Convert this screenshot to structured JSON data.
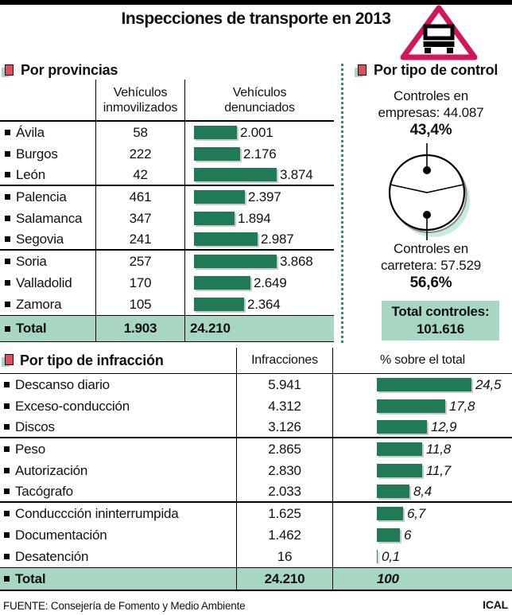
{
  "title": "Inspecciones de transporte en 2013",
  "colors": {
    "bar_green": "#1f7a55",
    "light_green": "#a7d7c3",
    "accent_pink": "#d3155c",
    "bullet_red": "#dd4f5e",
    "pie_shadow_teal": "#c9e9e3",
    "dotted_divider_green": "#2f8f68"
  },
  "provinces": {
    "section_title": "Por provincias",
    "col1_header": "Vehículos inmovilizados",
    "col2_header": "Vehículos denunciados",
    "rows": [
      {
        "name": "Ávila",
        "inmovilizados": "58",
        "denunciados": "2.001",
        "den_value": 2001
      },
      {
        "name": "Burgos",
        "inmovilizados": "222",
        "denunciados": "2.176",
        "den_value": 2176
      },
      {
        "name": "León",
        "inmovilizados": "42",
        "denunciados": "3.874",
        "den_value": 3874
      },
      {
        "name": "Palencia",
        "inmovilizados": "461",
        "denunciados": "2.397",
        "den_value": 2397
      },
      {
        "name": "Salamanca",
        "inmovilizados": "347",
        "denunciados": "1.894",
        "den_value": 1894
      },
      {
        "name": "Segovia",
        "inmovilizados": "241",
        "denunciados": "2.987",
        "den_value": 2987
      },
      {
        "name": "Soria",
        "inmovilizados": "257",
        "denunciados": "3.868",
        "den_value": 3868
      },
      {
        "name": "Valladolid",
        "inmovilizados": "170",
        "denunciados": "2.649",
        "den_value": 2649
      },
      {
        "name": "Zamora",
        "inmovilizados": "105",
        "denunciados": "2.364",
        "den_value": 2364
      }
    ],
    "total": {
      "label": "Total",
      "inmovilizados": "1.903",
      "denunciados": "24.210"
    }
  },
  "control": {
    "section_title": "Por tipo de control",
    "empresas_label": "Controles en empresas: 44.087",
    "empresas_pct": "43,4%",
    "carretera_label": "Controles en carretera: 57.529",
    "carretera_pct": "56,6%",
    "total_label": "Total controles:",
    "total_value": "101.616"
  },
  "infracciones": {
    "section_title": "Por tipo de infracción",
    "col1_header": "Infracciones",
    "col2_header": "% sobre el total",
    "rows": [
      {
        "name": "Descanso diario",
        "count": "5.941",
        "pct": "24,5",
        "pct_value": 24.5
      },
      {
        "name": "Exceso-conducción",
        "count": "4.312",
        "pct": "17,8",
        "pct_value": 17.8
      },
      {
        "name": "Discos",
        "count": "3.126",
        "pct": "12,9",
        "pct_value": 12.9
      },
      {
        "name": "Peso",
        "count": "2.865",
        "pct": "11,8",
        "pct_value": 11.8
      },
      {
        "name": "Autorización",
        "count": "2.830",
        "pct": "11,7",
        "pct_value": 11.7
      },
      {
        "name": "Tacógrafo",
        "count": "2.033",
        "pct": "8,4",
        "pct_value": 8.4
      },
      {
        "name": "Conduccción ininterrumpida",
        "count": "1.625",
        "pct": "6,7",
        "pct_value": 6.7
      },
      {
        "name": "Documentación",
        "count": "1.462",
        "pct": "6",
        "pct_value": 6
      },
      {
        "name": "Desatención",
        "count": "16",
        "pct": "0,1",
        "pct_value": 0.1
      }
    ],
    "total": {
      "label": "Total",
      "count": "24.210",
      "pct": "100"
    }
  },
  "footer": {
    "source": "FUENTE: Consejería de Fomento y Medio Ambiente",
    "credit": "ICAL"
  },
  "chart_data": [
    {
      "type": "bar",
      "title": "Por provincias",
      "categories": [
        "Ávila",
        "Burgos",
        "León",
        "Palencia",
        "Salamanca",
        "Segovia",
        "Soria",
        "Valladolid",
        "Zamora"
      ],
      "series": [
        {
          "name": "Vehículos inmovilizados",
          "values": [
            58,
            222,
            42,
            461,
            347,
            241,
            257,
            170,
            105
          ]
        },
        {
          "name": "Vehículos denunciados",
          "values": [
            2001,
            2176,
            3874,
            2397,
            1894,
            2987,
            3868,
            2649,
            2364
          ]
        }
      ],
      "totals": {
        "inmovilizados": 1903,
        "denunciados": 24210
      },
      "orientation": "horizontal",
      "grid": false,
      "legend_position": "column-headers"
    },
    {
      "type": "pie",
      "title": "Por tipo de control",
      "labels": [
        "Controles en empresas",
        "Controles en carretera"
      ],
      "values": [
        44087,
        57529
      ],
      "percents": [
        43.4,
        56.6
      ],
      "total": 101616
    },
    {
      "type": "bar",
      "title": "Por tipo de infracción",
      "categories": [
        "Descanso diario",
        "Exceso-conducción",
        "Discos",
        "Peso",
        "Autorización",
        "Tacógrafo",
        "Conduccción ininterrumpida",
        "Documentación",
        "Desatención"
      ],
      "series": [
        {
          "name": "Infracciones",
          "values": [
            5941,
            4312,
            3126,
            2865,
            2830,
            2033,
            1625,
            1462,
            16
          ]
        },
        {
          "name": "% sobre el total",
          "values": [
            24.5,
            17.8,
            12.9,
            11.8,
            11.7,
            8.4,
            6.7,
            6,
            0.1
          ]
        }
      ],
      "totals": {
        "infracciones": 24210,
        "pct_sobre_total": 100
      },
      "orientation": "horizontal",
      "grid": false,
      "xlim": [
        0,
        24.5
      ]
    }
  ]
}
